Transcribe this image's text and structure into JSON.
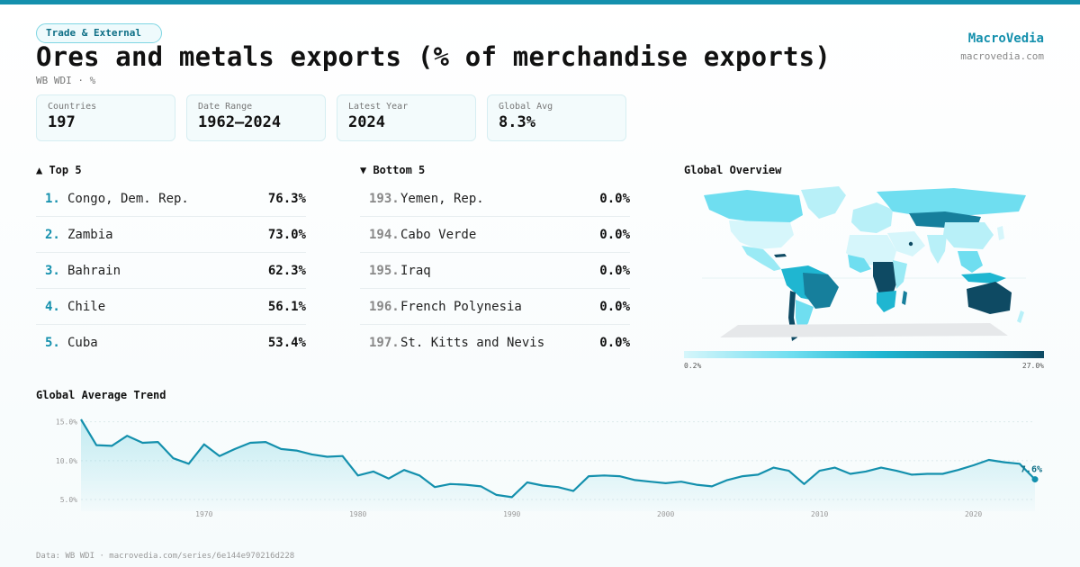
{
  "header": {
    "badge": "Trade & External",
    "title": "Ores and metals exports (% of merchandise exports)",
    "subtitle": "WB WDI · %",
    "brand": "MacroVedia",
    "brand_url": "macrovedia.com"
  },
  "stats": [
    {
      "label": "Countries",
      "value": "197"
    },
    {
      "label": "Date Range",
      "value": "1962–2024"
    },
    {
      "label": "Latest Year",
      "value": "2024"
    },
    {
      "label": "Global Avg",
      "value": "8.3%"
    }
  ],
  "top5": {
    "title": "▲ Top 5",
    "items": [
      {
        "rank": "1.",
        "name": "Congo, Dem. Rep.",
        "value": "76.3%"
      },
      {
        "rank": "2.",
        "name": "Zambia",
        "value": "73.0%"
      },
      {
        "rank": "3.",
        "name": "Bahrain",
        "value": "62.3%"
      },
      {
        "rank": "4.",
        "name": "Chile",
        "value": "56.1%"
      },
      {
        "rank": "5.",
        "name": "Cuba",
        "value": "53.4%"
      }
    ]
  },
  "bottom5": {
    "title": "▼ Bottom 5",
    "items": [
      {
        "rank": "193.",
        "name": "Yemen, Rep.",
        "value": "0.0%"
      },
      {
        "rank": "194.",
        "name": "Cabo Verde",
        "value": "0.0%"
      },
      {
        "rank": "195.",
        "name": "Iraq",
        "value": "0.0%"
      },
      {
        "rank": "196.",
        "name": "French Polynesia",
        "value": "0.0%"
      },
      {
        "rank": "197.",
        "name": "St. Kitts and Nevis",
        "value": "0.0%"
      }
    ]
  },
  "map": {
    "title": "Global Overview",
    "legend_min": "0.2%",
    "legend_max": "27.0%",
    "colors": [
      "#d6f6fb",
      "#6fdef0",
      "#1fb6d1",
      "#167f9c",
      "#0e4a63"
    ]
  },
  "trend_title": "Global Average Trend",
  "chart_data": {
    "type": "area",
    "title": "Global Average Trend",
    "x_ticks": [
      1970,
      1980,
      1990,
      2000,
      2010,
      2020
    ],
    "y_ticks": [
      "15.0%",
      "10.0%",
      "5.0%"
    ],
    "y_tick_values": [
      15,
      10,
      5
    ],
    "xlim": [
      1962,
      2024
    ],
    "ylim": [
      3.5,
      16
    ],
    "end_label": "7.6%",
    "line_color": "#1490ad",
    "x": [
      1962,
      1963,
      1964,
      1965,
      1966,
      1967,
      1968,
      1969,
      1970,
      1971,
      1972,
      1973,
      1974,
      1975,
      1976,
      1977,
      1978,
      1979,
      1980,
      1981,
      1982,
      1983,
      1984,
      1985,
      1986,
      1987,
      1988,
      1989,
      1990,
      1991,
      1992,
      1993,
      1994,
      1995,
      1996,
      1997,
      1998,
      1999,
      2000,
      2001,
      2002,
      2003,
      2004,
      2005,
      2006,
      2007,
      2008,
      2009,
      2010,
      2011,
      2012,
      2013,
      2014,
      2015,
      2016,
      2017,
      2018,
      2019,
      2020,
      2021,
      2022,
      2023,
      2024
    ],
    "values": [
      15.3,
      12.0,
      11.9,
      13.2,
      12.3,
      12.4,
      10.3,
      9.6,
      12.1,
      10.6,
      11.5,
      12.3,
      12.4,
      11.5,
      11.3,
      10.8,
      10.5,
      10.6,
      8.1,
      8.6,
      7.7,
      8.8,
      8.1,
      6.6,
      7.0,
      6.9,
      6.7,
      5.6,
      5.3,
      7.2,
      6.8,
      6.6,
      6.1,
      8.0,
      8.1,
      8.0,
      7.5,
      7.3,
      7.1,
      7.3,
      6.9,
      6.7,
      7.5,
      8.0,
      8.2,
      9.1,
      8.7,
      7.0,
      8.7,
      9.1,
      8.3,
      8.6,
      9.1,
      8.7,
      8.2,
      8.3,
      8.3,
      8.8,
      9.4,
      10.1,
      9.8,
      9.6,
      7.6
    ]
  },
  "footer": "Data: WB WDI · macrovedia.com/series/6e144e970216d228"
}
